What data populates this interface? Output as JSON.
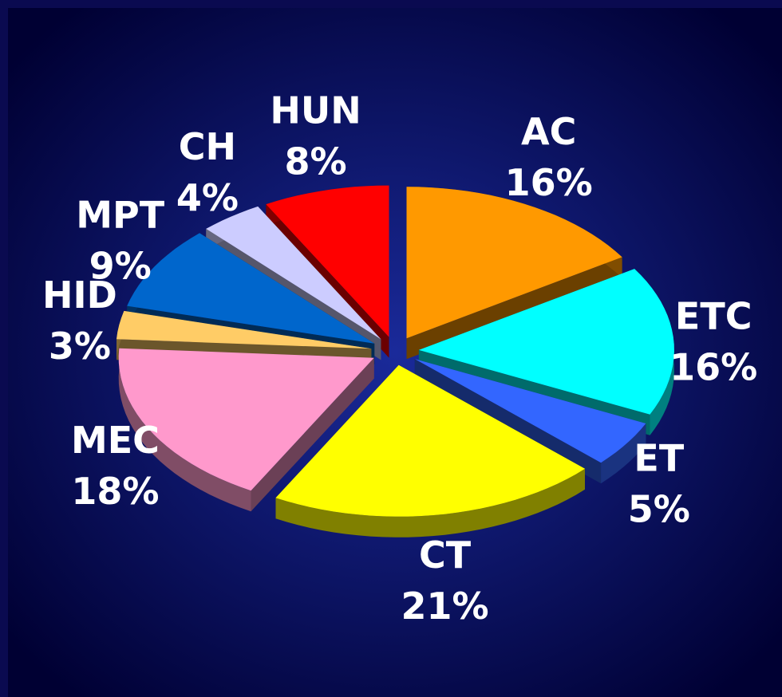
{
  "chart_data": {
    "type": "pie",
    "categories": [
      "AC",
      "ETC",
      "ET",
      "CT",
      "MEC",
      "HID",
      "MPT",
      "CH",
      "HUN"
    ],
    "values": [
      16,
      16,
      5,
      21,
      18,
      3,
      9,
      4,
      8
    ],
    "value_labels": [
      "16%",
      "16%",
      "5%",
      "21%",
      "18%",
      "3%",
      "9%",
      "4%",
      "8%"
    ],
    "colors": [
      "#ff9900",
      "#00ffff",
      "#3366ff",
      "#ffff00",
      "#ff99cc",
      "#ffcc66",
      "#0066cc",
      "#ccccff",
      "#ff0000"
    ]
  }
}
